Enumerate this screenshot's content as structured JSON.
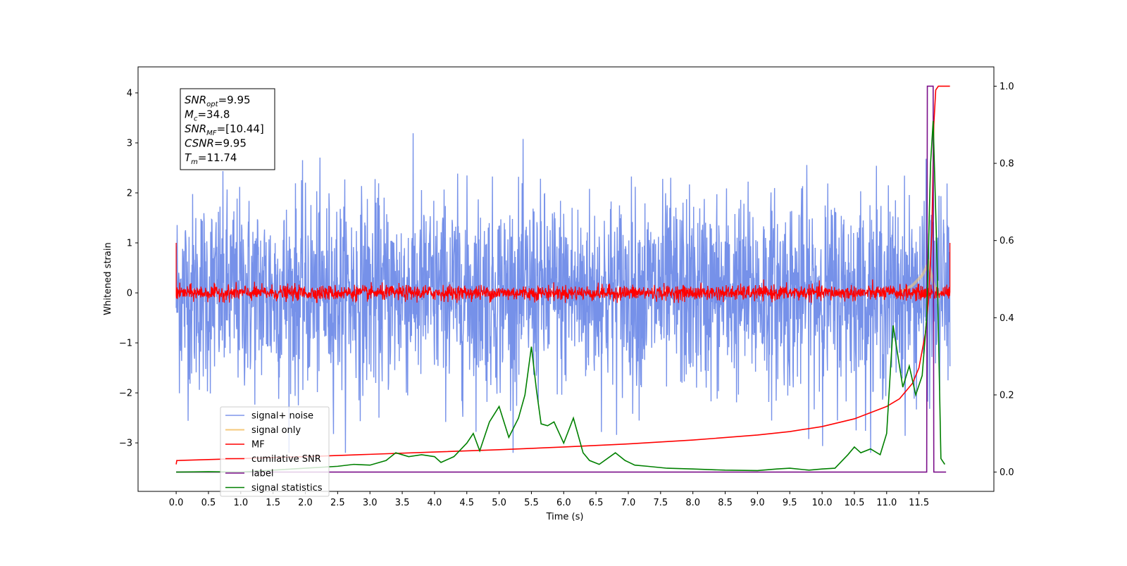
{
  "chart_data": {
    "type": "line",
    "xlabel": "Time (s)",
    "ylabel": "Whitened strain",
    "xlim": [
      -0.59,
      12.66
    ],
    "ylim": [
      -3.97,
      4.52
    ],
    "y2lim": [
      -0.05,
      1.05
    ],
    "x_ticks": [
      0.0,
      0.5,
      1.0,
      1.5,
      2.0,
      2.5,
      3.0,
      3.5,
      4.0,
      4.5,
      5.0,
      5.5,
      6.0,
      6.5,
      7.0,
      7.5,
      8.0,
      8.5,
      9.0,
      9.5,
      10.0,
      10.5,
      11.0,
      11.5
    ],
    "x_tick_labels": [
      "0.0",
      "0.5",
      "1.0",
      "1.5",
      "2.0",
      "2.5",
      "3.0",
      "3.5",
      "4.0",
      "4.5",
      "5.0",
      "5.5",
      "6.0",
      "6.5",
      "7.0",
      "7.5",
      "8.0",
      "8.5",
      "9.0",
      "9.5",
      "10.0",
      "10.5",
      "11.0",
      "11.5"
    ],
    "y_ticks": [
      -3,
      -2,
      -1,
      0,
      1,
      2,
      3,
      4
    ],
    "y_tick_labels": [
      "−3",
      "−2",
      "−1",
      "0",
      "1",
      "2",
      "3",
      "4"
    ],
    "y2_ticks": [
      0.0,
      0.2,
      0.4,
      0.6,
      0.8,
      1.0
    ],
    "y2_tick_labels": [
      "0.0",
      "0.2",
      "0.4",
      "0.6",
      "0.8",
      "1.0"
    ],
    "legend_placement": "lower-left",
    "grid": false,
    "series": [
      {
        "name": "signal+ noise",
        "color": "#6f8be8",
        "axis": "left",
        "noise": {
          "t_start": 0.0,
          "t_end": 11.98,
          "typical_amplitude": 1.3,
          "peak_min": -3.2,
          "peak_max": 3.3
        }
      },
      {
        "name": "signal only",
        "color": "#f5c97a",
        "axis": "left",
        "x": [
          11.2,
          11.4,
          11.55,
          11.65,
          11.72,
          11.78,
          11.85
        ],
        "y": [
          0.0,
          0.15,
          0.35,
          0.6,
          0.2,
          0.0,
          0.0
        ]
      },
      {
        "name": "MF",
        "color": "#ff0000",
        "axis": "left",
        "noise": {
          "t_start": 0.0,
          "t_end": 11.98,
          "typical_amplitude": 0.1,
          "start_value": 1.0,
          "end_value": 1.0
        }
      },
      {
        "name": "cumilative SNR",
        "color": "#ff0000",
        "axis": "right",
        "x": [
          0.0,
          0.01,
          1.0,
          2.0,
          3.0,
          4.0,
          5.0,
          6.0,
          7.0,
          8.0,
          9.0,
          9.5,
          10.0,
          10.5,
          11.0,
          11.2,
          11.4,
          11.5,
          11.6,
          11.65,
          11.7,
          11.73,
          11.76,
          11.8,
          11.98
        ],
        "y": [
          0.02,
          0.03,
          0.035,
          0.04,
          0.046,
          0.052,
          0.058,
          0.065,
          0.073,
          0.083,
          0.096,
          0.105,
          0.118,
          0.138,
          0.17,
          0.19,
          0.23,
          0.27,
          0.36,
          0.45,
          0.62,
          0.9,
          0.99,
          1.0,
          1.0
        ]
      },
      {
        "name": "label",
        "color": "#7b0f8a",
        "axis": "right",
        "x": [
          0.0,
          11.62,
          11.63,
          11.72,
          11.73,
          11.92
        ],
        "y": [
          0.0,
          0.0,
          1.0,
          1.0,
          0.0,
          0.0
        ]
      },
      {
        "name": "signal statistics",
        "color": "#008000",
        "axis": "right",
        "x": [
          0.0,
          0.5,
          1.0,
          1.5,
          2.0,
          2.5,
          2.75,
          3.0,
          3.25,
          3.4,
          3.6,
          3.8,
          4.0,
          4.1,
          4.3,
          4.5,
          4.6,
          4.7,
          4.85,
          5.0,
          5.15,
          5.3,
          5.4,
          5.5,
          5.58,
          5.65,
          5.75,
          5.85,
          6.0,
          6.15,
          6.3,
          6.4,
          6.55,
          6.8,
          6.95,
          7.1,
          7.3,
          7.6,
          8.0,
          8.5,
          9.0,
          9.3,
          9.5,
          9.8,
          10.0,
          10.2,
          10.4,
          10.5,
          10.6,
          10.75,
          10.9,
          11.0,
          11.1,
          11.25,
          11.35,
          11.45,
          11.55,
          11.62,
          11.68,
          11.72,
          11.78,
          11.84,
          11.9
        ],
        "y": [
          0.0,
          0.001,
          0.0,
          0.005,
          0.01,
          0.015,
          0.02,
          0.018,
          0.03,
          0.05,
          0.04,
          0.045,
          0.04,
          0.025,
          0.04,
          0.075,
          0.1,
          0.055,
          0.13,
          0.17,
          0.09,
          0.14,
          0.2,
          0.325,
          0.21,
          0.125,
          0.12,
          0.13,
          0.075,
          0.14,
          0.05,
          0.03,
          0.02,
          0.05,
          0.03,
          0.018,
          0.015,
          0.01,
          0.008,
          0.005,
          0.004,
          0.008,
          0.01,
          0.005,
          0.008,
          0.01,
          0.045,
          0.065,
          0.05,
          0.06,
          0.045,
          0.1,
          0.38,
          0.22,
          0.275,
          0.2,
          0.25,
          0.4,
          0.8,
          0.91,
          0.55,
          0.035,
          0.02
        ]
      }
    ],
    "annotations": [
      {
        "base": "SNR",
        "sub": "opt",
        "suffix": "=9.95"
      },
      {
        "base": "M",
        "sub": "c",
        "suffix": "=34.8"
      },
      {
        "base": "SNR",
        "sub": "MF",
        "suffix": "=[10.44]"
      },
      {
        "base": "CSNR",
        "sub": "",
        "suffix": "=9.95"
      },
      {
        "base": "T",
        "sub": "m",
        "suffix": "=11.74"
      }
    ]
  }
}
